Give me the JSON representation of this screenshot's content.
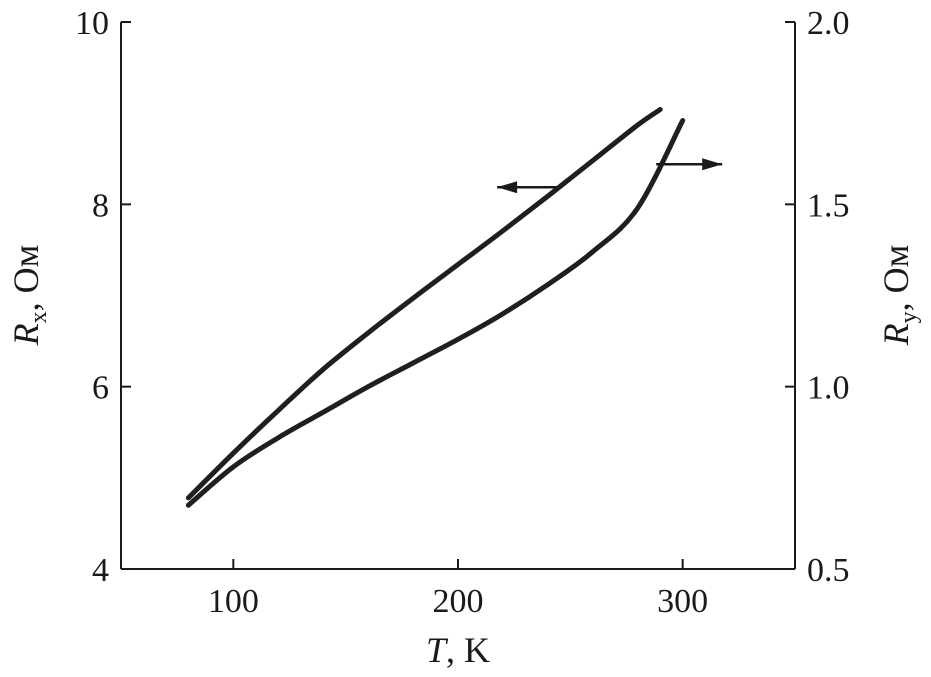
{
  "chart_data": {
    "type": "line",
    "x_axis": {
      "label_var": "T",
      "label_unit": ", K",
      "range": [
        50,
        350
      ],
      "ticks": [
        100,
        200,
        300
      ],
      "tick_labels": [
        "100",
        "200",
        "300"
      ]
    },
    "y_left": {
      "label_var": "R",
      "label_sub": "x",
      "label_unit": ", Ом",
      "range": [
        4,
        10
      ],
      "ticks": [
        4,
        6,
        8,
        10
      ],
      "tick_labels": [
        "4",
        "6",
        "8",
        "10"
      ]
    },
    "y_right": {
      "label_var": "R",
      "label_sub": "y",
      "label_unit": ", Ом",
      "range": [
        0.5,
        2.0
      ],
      "ticks": [
        0.5,
        1.0,
        1.5,
        2.0
      ],
      "tick_labels": [
        "0.5",
        "1.0",
        "1.5",
        "2.0"
      ]
    },
    "series": [
      {
        "axis": "left",
        "x": [
          80,
          100,
          120,
          140,
          160,
          180,
          200,
          220,
          240,
          260,
          280,
          290
        ],
        "y": [
          4.78,
          5.27,
          5.74,
          6.19,
          6.59,
          6.97,
          7.34,
          7.71,
          8.09,
          8.48,
          8.87,
          9.04
        ]
      },
      {
        "axis": "right",
        "x": [
          80,
          100,
          120,
          140,
          160,
          180,
          200,
          220,
          240,
          260,
          280,
          300
        ],
        "y": [
          0.675,
          0.78,
          0.86,
          0.93,
          1.0,
          1.065,
          1.13,
          1.2,
          1.28,
          1.37,
          1.49,
          1.73
        ]
      }
    ],
    "annotations": [
      {
        "type": "arrow",
        "points_to": "left"
      },
      {
        "type": "arrow",
        "points_to": "right"
      }
    ],
    "grid": false
  }
}
